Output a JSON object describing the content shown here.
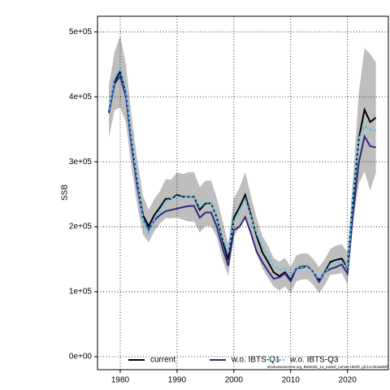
{
  "chart_data": {
    "type": "line",
    "ylabel": "SSB",
    "x": [
      1978,
      1979,
      1980,
      1981,
      1982,
      1983,
      1984,
      1985,
      1986,
      1987,
      1988,
      1989,
      1990,
      1991,
      1992,
      1993,
      1994,
      1995,
      1996,
      1997,
      1998,
      1999,
      2000,
      2001,
      2002,
      2003,
      2004,
      2005,
      2006,
      2007,
      2008,
      2009,
      2010,
      2011,
      2012,
      2013,
      2014,
      2015,
      2016,
      2017,
      2018,
      2019,
      2020,
      2021,
      2022,
      2023,
      2024,
      2025
    ],
    "series": [
      {
        "name": "current",
        "color": "#000000",
        "linestyle": "solid",
        "values": [
          377000,
          424000,
          439000,
          405000,
          330000,
          268000,
          218000,
          201000,
          218000,
          230000,
          243000,
          243000,
          249000,
          246000,
          246000,
          246000,
          226000,
          236000,
          236000,
          214000,
          180000,
          149000,
          214000,
          230000,
          249000,
          218000,
          186000,
          161000,
          146000,
          130000,
          124000,
          130000,
          118000,
          136000,
          139000,
          139000,
          130000,
          118000,
          130000,
          146000,
          149000,
          151000,
          136000,
          243000,
          336000,
          380000,
          361000,
          368000
        ]
      },
      {
        "name": "w.o. IBTS-Q1",
        "color": "#2b2b7e",
        "linestyle": "solid",
        "values": [
          375000,
          420000,
          432000,
          400000,
          325000,
          262000,
          212000,
          195000,
          210000,
          218000,
          224000,
          226000,
          228000,
          230000,
          232000,
          232000,
          214000,
          222000,
          222000,
          200000,
          168000,
          140000,
          195000,
          200000,
          215000,
          190000,
          162000,
          146000,
          132000,
          120000,
          122000,
          128000,
          116000,
          136000,
          137000,
          139000,
          130000,
          115000,
          130000,
          135000,
          138000,
          142000,
          128000,
          222000,
          299000,
          339000,
          324000,
          322000
        ]
      },
      {
        "name": "w.o. IBTS-Q3",
        "color": "#5bc0eb",
        "linestyle": "dashed",
        "values": [
          380000,
          428000,
          444000,
          408000,
          335000,
          272000,
          212000,
          190000,
          212000,
          225000,
          240000,
          243000,
          247000,
          245000,
          246000,
          246000,
          230000,
          238000,
          236000,
          214000,
          183000,
          160000,
          208000,
          225000,
          243000,
          215000,
          190000,
          170000,
          156000,
          140000,
          133000,
          136000,
          125000,
          137000,
          138000,
          138000,
          130000,
          120000,
          128000,
          142000,
          143000,
          146000,
          138000,
          248000,
          336000,
          355000,
          350000,
          348000
        ]
      }
    ],
    "band": {
      "color": "#bebebe",
      "lower": [
        337000,
        379000,
        384000,
        360000,
        290000,
        233000,
        188000,
        176000,
        193000,
        205000,
        213000,
        213000,
        214000,
        211000,
        208000,
        208000,
        191000,
        201000,
        201000,
        184000,
        150000,
        124000,
        184000,
        200000,
        214000,
        188000,
        158000,
        136000,
        121000,
        108000,
        102000,
        108000,
        98000,
        116000,
        119000,
        119000,
        110000,
        98000,
        110000,
        126000,
        127000,
        129000,
        111000,
        208000,
        266000,
        285000,
        256000,
        283000
      ],
      "upper": [
        417000,
        469000,
        494000,
        450000,
        370000,
        303000,
        248000,
        226000,
        243000,
        255000,
        273000,
        273000,
        284000,
        281000,
        284000,
        284000,
        261000,
        271000,
        271000,
        244000,
        210000,
        174000,
        244000,
        260000,
        284000,
        248000,
        214000,
        186000,
        171000,
        152000,
        146000,
        152000,
        138000,
        156000,
        159000,
        159000,
        150000,
        138000,
        150000,
        166000,
        171000,
        173000,
        161000,
        278000,
        406000,
        475000,
        466000,
        453000
      ]
    },
    "xlim": [
      1976,
      2027.2
    ],
    "ylim": [
      -20000,
      524000
    ],
    "xticks": [
      1980,
      1990,
      2000,
      2010,
      2020
    ],
    "yticks": [
      {
        "value": 0,
        "label": "0e+00"
      },
      {
        "value": 100000,
        "label": "1e+05"
      },
      {
        "value": 200000,
        "label": "2e+05"
      },
      {
        "value": 300000,
        "label": "3e+05"
      },
      {
        "value": 400000,
        "label": "4e+05"
      },
      {
        "value": 500000,
        "label": "5e+05"
      }
    ],
    "grid": true,
    "legend": "bottom",
    "footnote": "stockassessment.org, BW2026_12_newID_nomat-1962ft, git:1cc464a806f"
  }
}
